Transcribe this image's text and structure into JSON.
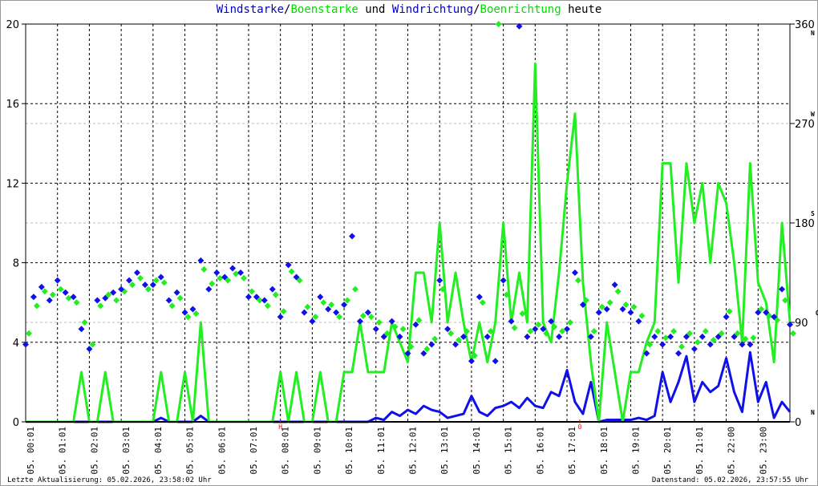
{
  "title": {
    "p1": "Windstarke",
    "s1": "/",
    "p2": "Boenstarke",
    "s2": " und ",
    "p3": "Windrichtung",
    "s3": "/",
    "p4": "Boenrichtung",
    "s4": " heute"
  },
  "footer": {
    "left": "Letzte Aktualisierung: 05.02.2026, 23:58:02 Uhr",
    "right": "Datenstand: 05.02.2026, 23:57:55 Uhr"
  },
  "colors": {
    "wind": "#1010e8",
    "gust": "#22ee22",
    "grid": "#000000",
    "grid_dir": "#bbbbbb",
    "marker": "#ff0000"
  },
  "chart_data": {
    "type": "line",
    "title": "Windstarke/Boenstarke und Windrichtung/Boenrichtung heute",
    "x_tick_labels": [
      "05. 00:01",
      "05. 01:01",
      "05. 02:01",
      "05. 03:01",
      "05. 04:01",
      "05. 05:01",
      "05. 06:01",
      "05. 07:01",
      "05. 08:01",
      "05. 09:01",
      "05. 10:01",
      "05. 11:01",
      "05. 12:01",
      "05. 13:01",
      "05. 14:01",
      "05. 15:01",
      "05. 16:01",
      "05. 17:01",
      "05. 18:01",
      "05. 19:01",
      "05. 20:01",
      "05. 21:01",
      "05. 22:00",
      "05. 23:00"
    ],
    "xlim_hours": [
      0,
      24
    ],
    "x_step_hours": 0.25,
    "ylim_left": [
      0,
      20
    ],
    "yticks_left": [
      0,
      4,
      8,
      12,
      16,
      20
    ],
    "ylim_right": [
      0,
      360
    ],
    "yticks_right": [
      {
        "v": 0,
        "c": "N"
      },
      {
        "v": 90,
        "c": "O"
      },
      {
        "v": 180,
        "c": "S"
      },
      {
        "v": 270,
        "c": "W"
      },
      {
        "v": 360,
        "c": "N"
      }
    ],
    "grid": true,
    "annotations": [
      {
        "hour": 8.0,
        "text": "H"
      },
      {
        "hour": 17.4,
        "text": "0"
      }
    ],
    "series": [
      {
        "key": "wind",
        "axis": "left",
        "style": "line",
        "values": [
          0,
          0,
          0,
          0,
          0,
          0,
          0,
          0,
          0,
          0,
          0,
          0,
          0,
          0,
          0,
          0,
          0,
          0.2,
          0,
          0,
          0,
          0,
          0.3,
          0,
          0,
          0,
          0,
          0,
          0,
          0,
          0,
          0,
          0,
          0,
          0,
          0,
          0,
          0,
          0,
          0,
          0,
          0,
          0,
          0,
          0.2,
          0.1,
          0.5,
          0.3,
          0.6,
          0.4,
          0.8,
          0.6,
          0.5,
          0.2,
          0.3,
          0.4,
          1.3,
          0.5,
          0.3,
          0.7,
          0.8,
          1.0,
          0.7,
          1.2,
          0.8,
          0.7,
          1.5,
          1.3,
          2.6,
          1.0,
          0.4,
          2.0,
          0,
          0.1,
          0.1,
          0.1,
          0.1,
          0.2,
          0.1,
          0.3,
          2.5,
          1.0,
          2.0,
          3.3,
          1.0,
          2.0,
          1.5,
          1.8,
          3.2,
          1.5,
          0.5,
          3.5,
          1.0,
          2.0,
          0.2,
          1.0,
          0.5
        ]
      },
      {
        "key": "gust",
        "axis": "left",
        "style": "line",
        "values": [
          0,
          0,
          0,
          0,
          0,
          0,
          0,
          2.5,
          0,
          0,
          2.5,
          0,
          0,
          0,
          0,
          0,
          0,
          2.5,
          0,
          0,
          2.5,
          0,
          5,
          0,
          0,
          0,
          0,
          0,
          0,
          0,
          0,
          0,
          2.5,
          0,
          2.5,
          0,
          0,
          2.5,
          0,
          0,
          2.5,
          2.5,
          5,
          2.5,
          2.5,
          2.5,
          5,
          4,
          3,
          7.5,
          7.5,
          5,
          10,
          5,
          7.5,
          5,
          3,
          5,
          3,
          5,
          10,
          5,
          7.5,
          5,
          18,
          5,
          4,
          7.5,
          12,
          15.5,
          7,
          3,
          0,
          5,
          2.5,
          0,
          2.5,
          2.5,
          4,
          5,
          13,
          13,
          7,
          13,
          10,
          12,
          8,
          12,
          11,
          8,
          4,
          13,
          7,
          6,
          3,
          10,
          5
        ]
      },
      {
        "key": "wind_dir",
        "axis": "right",
        "style": "diamond",
        "values": [
          70,
          113,
          122,
          110,
          128,
          117,
          113,
          84,
          66,
          110,
          112,
          117,
          120,
          128,
          135,
          124,
          124,
          131,
          110,
          117,
          99,
          102,
          146,
          120,
          135,
          131,
          139,
          135,
          113,
          113,
          110,
          120,
          95,
          142,
          131,
          99,
          91,
          113,
          102,
          99,
          106,
          168,
          91,
          99,
          84,
          77,
          91,
          77,
          62,
          88,
          62,
          70,
          128,
          84,
          70,
          77,
          55,
          113,
          77,
          55,
          128,
          91,
          358,
          77,
          84,
          84,
          91,
          77,
          84,
          135,
          106,
          77,
          99,
          102,
          124,
          102,
          99,
          91,
          62,
          77,
          70,
          77,
          62,
          77,
          66,
          77,
          70,
          77,
          95,
          77,
          70,
          70,
          99,
          99,
          95,
          120,
          88
        ]
      },
      {
        "key": "gust_dir",
        "axis": "right",
        "style": "diamond",
        "values": [
          80,
          105,
          118,
          115,
          120,
          112,
          108,
          90,
          70,
          105,
          115,
          110,
          118,
          124,
          130,
          120,
          128,
          126,
          105,
          112,
          95,
          98,
          138,
          125,
          130,
          128,
          134,
          130,
          118,
          110,
          105,
          115,
          100,
          136,
          128,
          104,
          95,
          108,
          106,
          95,
          110,
          120,
          96,
          95,
          90,
          80,
          86,
          84,
          68,
          92,
          66,
          75,
          120,
          80,
          74,
          82,
          60,
          108,
          82,
          360,
          115,
          85,
          98,
          82,
          88,
          80,
          86,
          82,
          90,
          128,
          110,
          82,
          104,
          108,
          118,
          106,
          104,
          96,
          70,
          82,
          76,
          82,
          68,
          80,
          72,
          82,
          74,
          80,
          100,
          80,
          75,
          76,
          102,
          96,
          92,
          110,
          80
        ]
      }
    ]
  }
}
